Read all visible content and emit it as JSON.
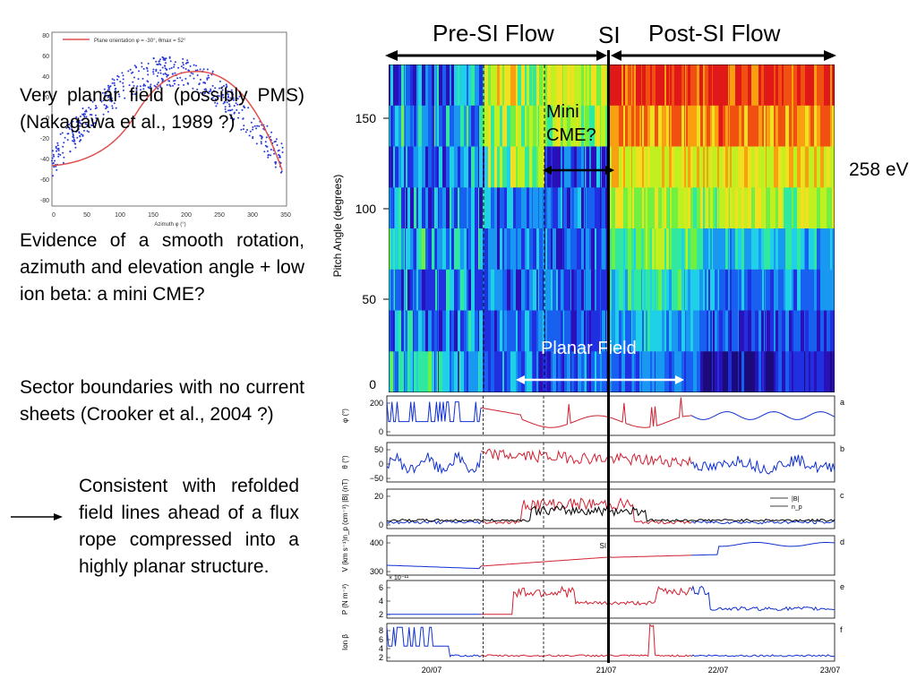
{
  "notes": {
    "planar_field": "Very planar field (possibly PMS) (Nakagawa et al., 1989 ?)",
    "smooth_rotation": "Evidence of a smooth rotation, azimuth and elevation angle + low ion beta: a mini CME?",
    "sector_boundaries": "Sector boundaries with no current sheets (Crooker et al., 2004 ?)",
    "refolded": "Consistent with refolded field lines ahead of a flux rope compressed into a highly planar structure."
  },
  "inset": {
    "legend": "Plane orientation φ = -30°, θmax = 52°",
    "xlabel": "Azimuth φ (°)",
    "xticks": [
      "0",
      "50",
      "100",
      "150",
      "200",
      "250",
      "300",
      "350"
    ],
    "yticks": [
      "80",
      "60",
      "40",
      "20",
      "0",
      "-20",
      "-40",
      "-60",
      "-80"
    ]
  },
  "header": {
    "pre_si": "Pre-SI Flow",
    "si": "SI",
    "post_si": "Post-SI Flow",
    "mini_cme": "Mini CME?",
    "planar_field": "Planar Field",
    "energy": "258 eV"
  },
  "spectrogram": {
    "ylabel": "Pitch Angle (degrees)",
    "yticks": [
      "150",
      "100",
      "50",
      "0"
    ]
  },
  "panels": [
    {
      "id": "a",
      "ylabel": "φ (°)",
      "ticks": [
        "200",
        "0"
      ]
    },
    {
      "id": "b",
      "ylabel": "θ (°)",
      "ticks": [
        "50",
        "0",
        "−50"
      ]
    },
    {
      "id": "c",
      "ylabel": "n_p (cm⁻³) |B| (nT)",
      "ticks": [
        "20",
        "0"
      ],
      "legend": [
        "|B|",
        "n_p"
      ]
    },
    {
      "id": "d",
      "ylabel": "V (km s⁻¹)",
      "ticks": [
        "400",
        "300"
      ],
      "annotation": "SI"
    },
    {
      "id": "e",
      "ylabel": "P (N m⁻²)",
      "ticks": [
        "6",
        "4",
        "2"
      ],
      "scale": "× 10⁻¹¹"
    },
    {
      "id": "f",
      "ylabel": "Ion β",
      "ticks": [
        "8",
        "6",
        "4",
        "2"
      ]
    }
  ],
  "time_axis": [
    "20/07",
    "21/07",
    "22/07",
    "23/07"
  ],
  "colors": {
    "blue": "#1030d0",
    "red": "#d02030",
    "black": "#000000"
  }
}
